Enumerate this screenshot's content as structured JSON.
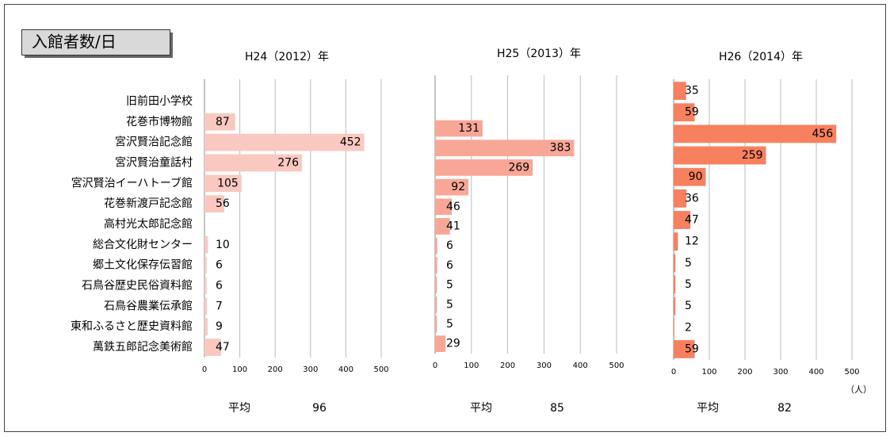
{
  "title": "入館者数/日",
  "unit": "（人）",
  "chart_data": [
    {
      "type": "bar",
      "orientation": "horizontal",
      "title": "H24（2012）年",
      "color": "#f9c9c1",
      "categories": [
        "旧前田小学校",
        "花巻市博物館",
        "宮沢賢治記念館",
        "宮沢賢治童話村",
        "宮沢賢治イーハトーブ館",
        "花巻新渡戸記念館",
        "高村光太郎記念館",
        "総合文化財センター",
        "郷土文化保存伝習館",
        "石鳥谷歴史民俗資料館",
        "石鳥谷農業伝承館",
        "東和ふるさと歴史資料館",
        "萬鉄五郎記念美術館"
      ],
      "values": [
        null,
        87,
        452,
        276,
        105,
        56,
        null,
        10,
        6,
        6,
        7,
        9,
        47
      ],
      "xlim": [
        0,
        500
      ],
      "xticks": [
        0,
        100,
        200,
        300,
        400,
        500
      ],
      "grid": true,
      "average_label": "平均",
      "average": 96
    },
    {
      "type": "bar",
      "orientation": "horizontal",
      "title": "H25（2013）年",
      "color": "#f8a797",
      "values": [
        null,
        131,
        383,
        269,
        92,
        46,
        41,
        6,
        6,
        5,
        5,
        5,
        29
      ],
      "xlim": [
        0,
        500
      ],
      "xticks": [
        0,
        100,
        200,
        300,
        400,
        500
      ],
      "grid": true,
      "average_label": "平均",
      "average": 85
    },
    {
      "type": "bar",
      "orientation": "horizontal",
      "title": "H26（2014）年",
      "color": "#f7805f",
      "values": [
        35,
        59,
        456,
        259,
        90,
        36,
        47,
        12,
        5,
        5,
        5,
        2,
        59
      ],
      "xlim": [
        0,
        500
      ],
      "xticks": [
        0,
        100,
        200,
        300,
        400,
        500
      ],
      "grid": true,
      "average_label": "平均",
      "average": 82
    }
  ]
}
